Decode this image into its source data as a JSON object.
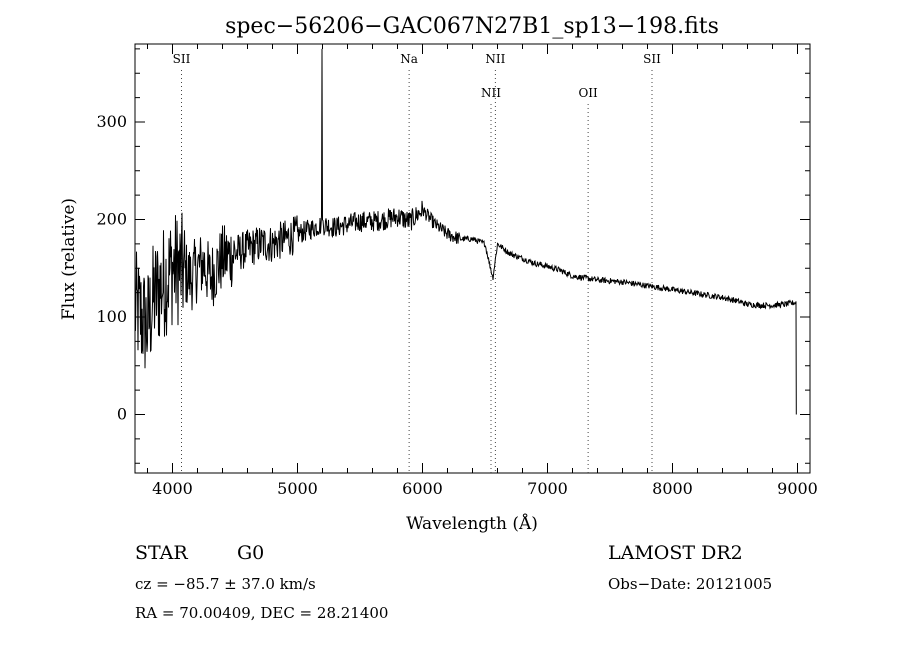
{
  "chart_data": {
    "type": "line",
    "title": "spec−56206−GAC067N27B1_sp13−198.fits",
    "xlabel": "Wavelength (Å)",
    "ylabel": "Flux (relative)",
    "xlim": [
      3700,
      9100
    ],
    "ylim": [
      -60,
      380
    ],
    "x_ticks": [
      4000,
      5000,
      6000,
      7000,
      8000,
      9000
    ],
    "y_ticks": [
      0,
      100,
      200,
      300
    ],
    "series": [
      {
        "x": [
          3700,
          3750,
          3800,
          3850,
          3900,
          3950,
          4000,
          4050,
          4100,
          4150,
          4200,
          4250,
          4300,
          4350,
          4400,
          4500,
          4600,
          4700,
          4800,
          4900,
          5000,
          5100,
          5200,
          5300,
          5400,
          5500,
          5600,
          5700,
          5800,
          5900,
          6000,
          6100,
          6200,
          6300,
          6400,
          6500,
          6563,
          6600,
          6700,
          6800,
          6900,
          7000,
          7100,
          7200,
          7300,
          7400,
          7500,
          7600,
          7700,
          7800,
          7900,
          8000,
          8100,
          8200,
          8300,
          8400,
          8500,
          8600,
          8700,
          8800,
          8900,
          8990
        ],
        "y": [
          110,
          100,
          90,
          120,
          130,
          140,
          150,
          150,
          145,
          140,
          150,
          155,
          140,
          150,
          160,
          165,
          170,
          175,
          175,
          180,
          185,
          190,
          195,
          192,
          195,
          198,
          198,
          200,
          203,
          198,
          210,
          195,
          185,
          180,
          180,
          175,
          140,
          175,
          165,
          160,
          155,
          152,
          148,
          142,
          140,
          138,
          137,
          136,
          134,
          132,
          130,
          128,
          126,
          124,
          122,
          120,
          117,
          113,
          112,
          112,
          113,
          115
        ]
      }
    ],
    "line_markers": [
      {
        "label": "SII",
        "x": 4072,
        "row": "top"
      },
      {
        "label": "Na",
        "x": 5893,
        "row": "top"
      },
      {
        "label": "NII",
        "x": 6583,
        "row": "top"
      },
      {
        "label": "NII",
        "x": 6548,
        "row": "bottom"
      },
      {
        "label": "OII",
        "x": 7325,
        "row": "bottom"
      },
      {
        "label": "SII",
        "x": 7836,
        "row": "top"
      }
    ]
  },
  "info": {
    "class_label": "STAR",
    "subclass": "G0",
    "survey": "LAMOST DR2",
    "cz": "cz = −85.7 ± 37.0 km/s",
    "obs_date": "Obs−Date: 20121005",
    "coords": "RA =  70.00409, DEC =  28.21400"
  }
}
